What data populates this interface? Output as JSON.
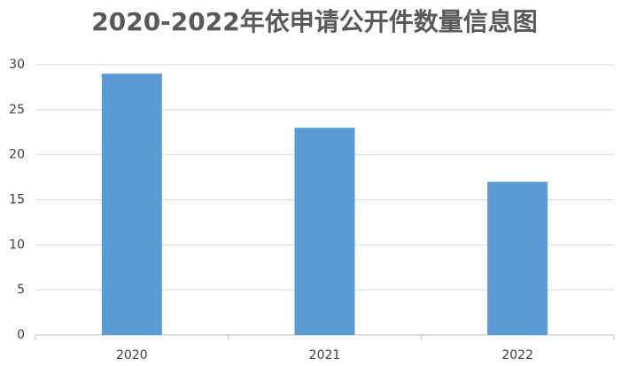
{
  "chart_data": {
    "type": "bar",
    "title": "2020-2022年依申请公开件数量信息图",
    "categories": [
      "2020",
      "2021",
      "2022"
    ],
    "values": [
      29,
      23,
      17
    ],
    "color": "#5b9bd5",
    "ylim": [
      0,
      30
    ],
    "yticks": [
      0,
      5,
      10,
      15,
      20,
      25,
      30
    ],
    "grid": true
  }
}
